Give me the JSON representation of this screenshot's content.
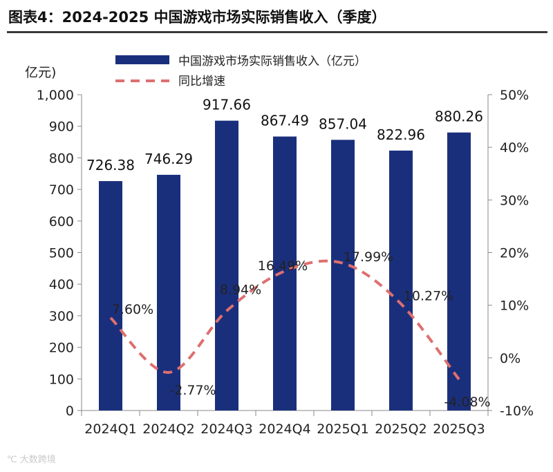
{
  "figure": {
    "label": "图表4：",
    "title": "2024-2025 中国游戏市场实际销售收入（季度）"
  },
  "watermark": "大数跨境",
  "chart_data": {
    "type": "bar",
    "categories": [
      "2024Q1",
      "2024Q2",
      "2024Q3",
      "2024Q4",
      "2025Q1",
      "2025Q2",
      "2025Q3"
    ],
    "series": [
      {
        "name": "中国游戏市场实际销售收入（亿元）",
        "type": "bar",
        "axis": "left",
        "color": "#1a2f7c",
        "values": [
          726.38,
          746.29,
          917.66,
          867.49,
          857.04,
          822.96,
          880.26
        ],
        "labels": [
          "726.38",
          "746.29",
          "917.66",
          "867.49",
          "857.04",
          "822.96",
          "880.26"
        ]
      },
      {
        "name": "同比增速",
        "type": "line",
        "style": "dashed",
        "axis": "right",
        "color": "#de6f6f",
        "values": [
          7.6,
          -2.77,
          8.94,
          16.49,
          17.99,
          10.27,
          -4.08
        ],
        "labels": [
          "7.60%",
          "-2.77%",
          "8.94%",
          "16.49%",
          "17.99%",
          "10.27%",
          "-4.08%"
        ]
      }
    ],
    "y_left": {
      "unit_label": "亿元)",
      "range": [
        0,
        1000
      ],
      "ticks": [
        0,
        100,
        200,
        300,
        400,
        500,
        600,
        700,
        800,
        900,
        1000
      ],
      "tick_labels": [
        "0",
        "100",
        "200",
        "300",
        "400",
        "500",
        "600",
        "700",
        "800",
        "900",
        "1,000"
      ]
    },
    "y_right": {
      "range": [
        -10,
        50
      ],
      "ticks": [
        -10,
        0,
        10,
        20,
        30,
        40,
        50
      ],
      "tick_labels": [
        "-10%",
        "0%",
        "10%",
        "20%",
        "30%",
        "40%",
        "50%"
      ]
    },
    "grid": false,
    "legend_position": "top-center"
  }
}
